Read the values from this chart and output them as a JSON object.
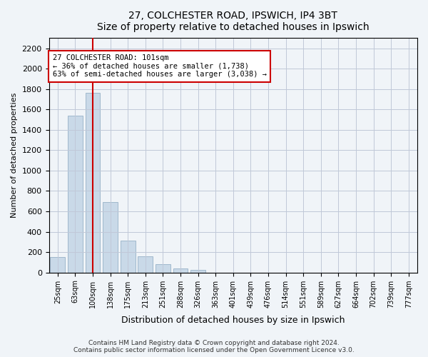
{
  "title1": "27, COLCHESTER ROAD, IPSWICH, IP4 3BT",
  "title2": "Size of property relative to detached houses in Ipswich",
  "xlabel": "Distribution of detached houses by size in Ipswich",
  "ylabel": "Number of detached properties",
  "categories": [
    "25sqm",
    "63sqm",
    "100sqm",
    "138sqm",
    "175sqm",
    "213sqm",
    "251sqm",
    "288sqm",
    "326sqm",
    "363sqm",
    "401sqm",
    "439sqm",
    "476sqm",
    "514sqm",
    "551sqm",
    "589sqm",
    "627sqm",
    "664sqm",
    "702sqm",
    "739sqm",
    "777sqm"
  ],
  "values": [
    155,
    1540,
    1760,
    690,
    310,
    160,
    80,
    43,
    25,
    0,
    0,
    0,
    0,
    0,
    0,
    0,
    0,
    0,
    0,
    0,
    0
  ],
  "bar_color": "#c9d9e8",
  "bar_edgecolor": "#a0b8cc",
  "vline_x": 2,
  "vline_color": "#cc0000",
  "annotation_text": "27 COLCHESTER ROAD: 101sqm\n← 36% of detached houses are smaller (1,738)\n63% of semi-detached houses are larger (3,038) →",
  "annotation_box_color": "#ffffff",
  "annotation_box_edgecolor": "#cc0000",
  "ylim": [
    0,
    2300
  ],
  "yticks": [
    0,
    200,
    400,
    600,
    800,
    1000,
    1200,
    1400,
    1600,
    1800,
    2000,
    2200
  ],
  "footer1": "Contains HM Land Registry data © Crown copyright and database right 2024.",
  "footer2": "Contains public sector information licensed under the Open Government Licence v3.0.",
  "bg_color": "#f0f4f8",
  "plot_bg_color": "#f0f4f8",
  "grid_color": "#c0c8d8"
}
